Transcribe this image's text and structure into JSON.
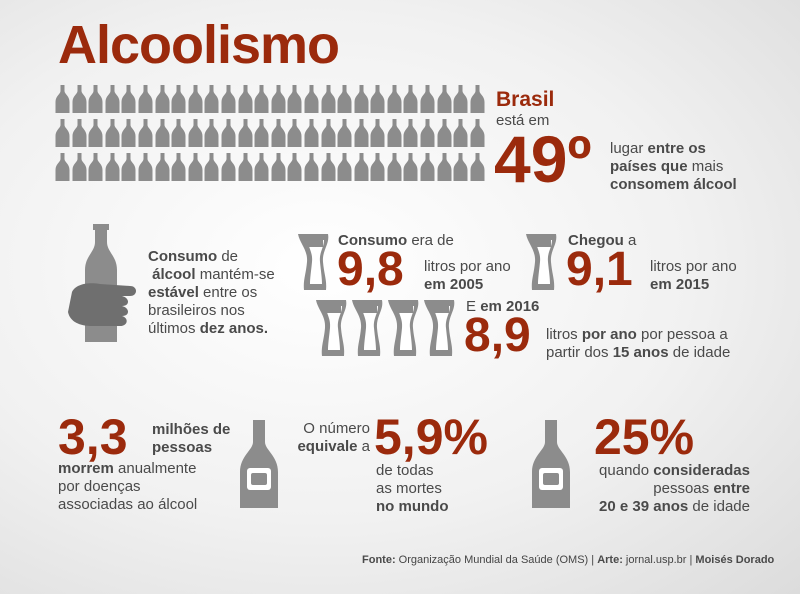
{
  "title": "Alcoolismo",
  "rank": {
    "country": "Brasil",
    "prefix": "está em",
    "number": "49º",
    "line1a": "lugar ",
    "line1b": "entre os",
    "line2a": "países que",
    "line2b": " mais",
    "line3": "consomem álcool"
  },
  "stable": {
    "w1": "Consumo",
    "w2": " de",
    "w3": "álcool",
    "w4": " mantém-se",
    "w5": "estável",
    "w6": " entre os",
    "w7": "brasileiros nos",
    "w8": "últimos ",
    "w9": "dez anos."
  },
  "y2005": {
    "label_bold": "Consumo",
    "label_rest": " era de",
    "value": "9,8",
    "unit": "litros por ano",
    "year": "em 2005"
  },
  "y2015": {
    "label_bold": "Chegou",
    "label_rest": " a",
    "value": "9,1",
    "unit": "litros por ano",
    "year": "em 2015"
  },
  "y2016": {
    "prefix": "E ",
    "year": "em 2016",
    "value": "8,9",
    "l1a": "litros ",
    "l1b": "por ano",
    "l1c": " por pessoa a",
    "l2a": "partir dos ",
    "l2b": "15 anos",
    "l2c": " de idade"
  },
  "deaths": {
    "value": "3,3",
    "w1": "milhões de",
    "w2": "pessoas",
    "w3": "morrem",
    "w4": " anualmente",
    "w5": "por doenças",
    "w6": "associadas ao álcool"
  },
  "percent": {
    "pre1": "O número",
    "pre2": "equivale",
    "pre3": " a",
    "value": "5,9%",
    "l1": "de todas",
    "l2": "as mortes",
    "l3": "no mundo"
  },
  "young": {
    "value": "25%",
    "l1a": "quando ",
    "l1b": "consideradas",
    "l2a": "pessoas  ",
    "l2b": "entre",
    "l3a": "20 e 39 anos",
    "l3b": " de idade"
  },
  "footer": {
    "fonte_label": "Fonte:",
    "fonte": " Organização Mundial da Saúde (OMS) | ",
    "arte_label": "Arte:",
    "arte": " jornal.usp.br | ",
    "author": "Moisés Dorado"
  },
  "colors": {
    "accent": "#9b2a0c",
    "icon": "#8c8c8c"
  }
}
